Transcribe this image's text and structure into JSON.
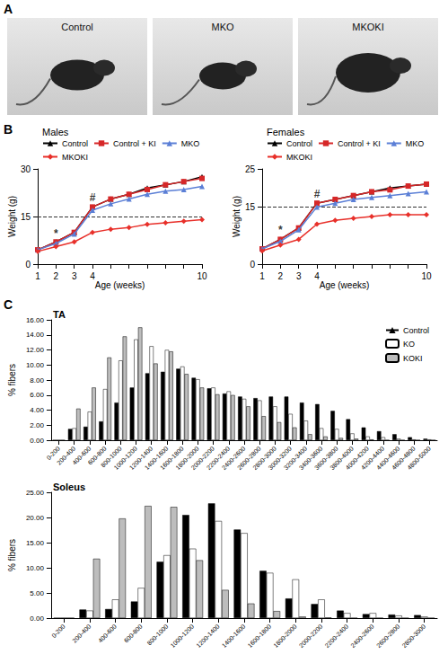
{
  "photos": {
    "panel": "A",
    "labels": [
      "Control",
      "MKO",
      "MKOKI"
    ]
  },
  "chart_data": [
    {
      "panel": "B",
      "type": "line",
      "title": "Males",
      "xlabel": "Age (weeks)",
      "ylabel": "Weight (g)",
      "categories": [
        "1",
        "2",
        "3",
        "4",
        null,
        null,
        null,
        null,
        null,
        "10"
      ],
      "ylim": [
        0,
        30
      ],
      "yticks": [
        0,
        15,
        30
      ],
      "grid": false,
      "legend": "top",
      "series": [
        {
          "name": "Control",
          "color": "#000000",
          "marker": "triangle",
          "values": [
            4.5,
            7,
            10,
            18,
            20.5,
            22,
            24,
            25,
            26,
            27.5
          ]
        },
        {
          "name": "Control + KI",
          "color": "#d62728",
          "marker": "square",
          "values": [
            4.5,
            7,
            10,
            18,
            20.5,
            22,
            23.5,
            25,
            26,
            27
          ]
        },
        {
          "name": "MKO",
          "color": "#5b7fd6",
          "marker": "triangle",
          "values": [
            4.5,
            6.5,
            9.5,
            17,
            19,
            20.5,
            22,
            23,
            23.5,
            24.5
          ]
        },
        {
          "name": "MKOKI",
          "color": "#e8302a",
          "marker": "diamond",
          "values": [
            4,
            5.5,
            7,
            10,
            11,
            11.5,
            12.5,
            13,
            13.5,
            14
          ]
        }
      ],
      "reference_lines": [
        {
          "y": 15,
          "line_style": "dashed"
        }
      ],
      "annotations": [
        {
          "text": "*",
          "x": "2",
          "y": 9.5
        },
        {
          "text": "#",
          "x": "4",
          "y": 21
        }
      ]
    },
    {
      "panel": "B",
      "type": "line",
      "title": "Females",
      "xlabel": "Age (weeks)",
      "ylabel": "Weight (g)",
      "categories": [
        "1",
        "2",
        "3",
        "4",
        null,
        null,
        null,
        null,
        null,
        "10"
      ],
      "ylim": [
        0,
        25
      ],
      "yticks": [
        0,
        15,
        25
      ],
      "grid": false,
      "legend": "top",
      "series": [
        {
          "name": "Control",
          "color": "#000000",
          "marker": "triangle",
          "values": [
            4,
            6.5,
            9.5,
            16,
            17,
            18,
            19,
            20,
            20.5,
            21
          ]
        },
        {
          "name": "Control + KI",
          "color": "#d62728",
          "marker": "square",
          "values": [
            4,
            6.5,
            9.5,
            16,
            17,
            18,
            19,
            19.5,
            20.5,
            21
          ]
        },
        {
          "name": "MKO",
          "color": "#5b7fd6",
          "marker": "triangle",
          "values": [
            4,
            6,
            9,
            15,
            16,
            17,
            17.5,
            18,
            18.5,
            19
          ]
        },
        {
          "name": "MKOKI",
          "color": "#e8302a",
          "marker": "diamond",
          "values": [
            3.5,
            5,
            6.5,
            10.5,
            11.5,
            12,
            12.5,
            13,
            13,
            13
          ]
        }
      ],
      "reference_lines": [
        {
          "y": 15,
          "line_style": "dashed"
        }
      ],
      "annotations": [
        {
          "text": "*",
          "x": "2",
          "y": 9
        },
        {
          "text": "#",
          "x": "4",
          "y": 18.5
        }
      ]
    },
    {
      "panel": "C",
      "type": "bar",
      "title": "TA",
      "ylabel": "% fibers",
      "categories": [
        "0-200",
        "200-400",
        "400-600",
        "600-800",
        "800-1000",
        "1000-1200",
        "1200-1400",
        "1400-1600",
        "1600-1800",
        "1800-2000",
        "2000-2200",
        "2200-2400",
        "2400-2600",
        "2600-2800",
        "2800-3000",
        "3000-3200",
        "3200-3400",
        "3400-3600",
        "3600-3800",
        "3800-4000",
        "4000-4200",
        "4200-4400",
        "4400-4600",
        "4600-4800",
        "4800-5000"
      ],
      "ylim": [
        0,
        16
      ],
      "yticks": [
        {
          "value": 0,
          "label": "0.00"
        },
        {
          "value": 2,
          "label": "2.00"
        },
        {
          "value": 4,
          "label": "4.00"
        },
        {
          "value": 6,
          "label": "6.00"
        },
        {
          "value": 8,
          "label": "8.00"
        },
        {
          "value": 10,
          "label": "10.00"
        },
        {
          "value": 12,
          "label": "12.00"
        },
        {
          "value": 14,
          "label": "14.00"
        },
        {
          "value": 16,
          "label": "16.00"
        }
      ],
      "grid": false,
      "legend": "top-right",
      "series": [
        {
          "name": "Control",
          "color": "#000000",
          "values": [
            0,
            1.5,
            1.8,
            2.5,
            5.0,
            7.0,
            8.9,
            9.1,
            9.5,
            8.3,
            6.9,
            6.2,
            5.8,
            5.6,
            5.8,
            5.8,
            5.0,
            4.8,
            3.9,
            2.8,
            1.7,
            1.2,
            0.8,
            0.4,
            0.2
          ]
        },
        {
          "name": "KO",
          "color": "#ffffff",
          "values": [
            0,
            1.6,
            3.8,
            6.8,
            10.6,
            13.4,
            12.5,
            12.0,
            9.8,
            8.1,
            7.0,
            6.5,
            5.5,
            5.3,
            4.5,
            3.5,
            2.6,
            1.6,
            1.5,
            0.9,
            0.5,
            0.4,
            0.2,
            0.1,
            0.1
          ]
        },
        {
          "name": "KOKI",
          "color": "#bdbdbd",
          "values": [
            0,
            4.2,
            7.0,
            11.0,
            13.8,
            15.0,
            10.2,
            11.8,
            8.8,
            7.0,
            6.1,
            6.0,
            4.5,
            3.2,
            2.4,
            1.7,
            0.8,
            0.5,
            0.3,
            0.2,
            0.1,
            0,
            0,
            0,
            0
          ]
        }
      ]
    },
    {
      "panel": "C",
      "type": "bar",
      "title": "Soleus",
      "ylabel": "% fibers",
      "categories": [
        "0-200",
        "200-400",
        "400-600",
        "600-800",
        "800-1000",
        "1000-1200",
        "1200-1400",
        "1400-1600",
        "1600-1800",
        "1800-2000",
        "2000-2200",
        "2200-2400",
        "2400-2600",
        "2600-2800",
        "2800-3000"
      ],
      "ylim": [
        0,
        25
      ],
      "yticks": [
        {
          "value": 0,
          "label": "0.00"
        },
        {
          "value": 5,
          "label": "5.00"
        },
        {
          "value": 10,
          "label": "10.00"
        },
        {
          "value": 15,
          "label": "15.00"
        },
        {
          "value": 20,
          "label": "20.00"
        },
        {
          "value": 25,
          "label": "25.00"
        }
      ],
      "grid": false,
      "series": [
        {
          "name": "Control",
          "color": "#000000",
          "values": [
            0,
            1.7,
            1.8,
            3.3,
            11.2,
            20.5,
            22.8,
            17.6,
            9.4,
            3.9,
            2.8,
            1.5,
            0.8,
            0.7,
            0.6
          ]
        },
        {
          "name": "KO",
          "color": "#ffffff",
          "values": [
            0,
            1.5,
            3.7,
            6.0,
            12.5,
            13.8,
            19.3,
            16.9,
            9.0,
            7.7,
            3.7,
            1.0,
            1.0,
            0.5,
            0.3
          ]
        },
        {
          "name": "KOKI",
          "color": "#bdbdbd",
          "values": [
            0,
            11.8,
            19.8,
            22.3,
            22.1,
            11.5,
            5.6,
            2.9,
            1.4,
            0.3,
            0.1,
            0,
            0,
            0,
            0
          ]
        }
      ]
    }
  ]
}
